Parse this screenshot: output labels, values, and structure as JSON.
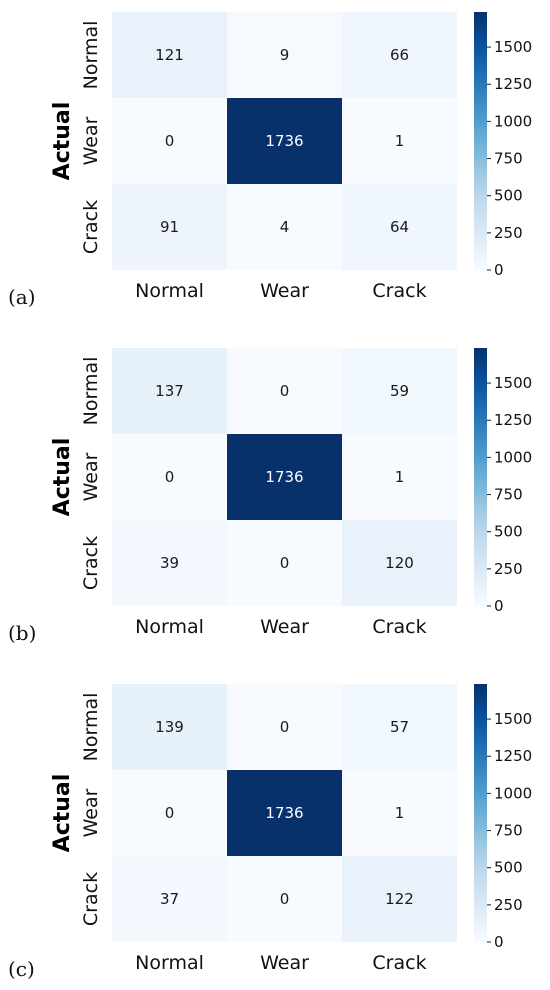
{
  "chart_data": [
    {
      "type": "heatmap",
      "panel_label": "(a)",
      "ylabel": "Actual",
      "xlabel": "",
      "x_categories": [
        "Normal",
        "Wear",
        "Crack"
      ],
      "y_categories": [
        "Normal",
        "Wear",
        "Crack"
      ],
      "values": [
        [
          121,
          9,
          66
        ],
        [
          0,
          1736,
          1
        ],
        [
          91,
          4,
          64
        ]
      ],
      "colorbar": {
        "min": 0,
        "max": 1736,
        "ticks": [
          0,
          250,
          500,
          750,
          1000,
          1250,
          1500
        ]
      },
      "colormap": "Blues"
    },
    {
      "type": "heatmap",
      "panel_label": "(b)",
      "ylabel": "Actual",
      "xlabel": "",
      "x_categories": [
        "Normal",
        "Wear",
        "Crack"
      ],
      "y_categories": [
        "Normal",
        "Wear",
        "Crack"
      ],
      "values": [
        [
          137,
          0,
          59
        ],
        [
          0,
          1736,
          1
        ],
        [
          39,
          0,
          120
        ]
      ],
      "colorbar": {
        "min": 0,
        "max": 1736,
        "ticks": [
          0,
          250,
          500,
          750,
          1000,
          1250,
          1500
        ]
      },
      "colormap": "Blues"
    },
    {
      "type": "heatmap",
      "panel_label": "(c)",
      "ylabel": "Actual",
      "xlabel": "",
      "x_categories": [
        "Normal",
        "Wear",
        "Crack"
      ],
      "y_categories": [
        "Normal",
        "Wear",
        "Crack"
      ],
      "values": [
        [
          139,
          0,
          57
        ],
        [
          0,
          1736,
          1
        ],
        [
          37,
          0,
          122
        ]
      ],
      "colorbar": {
        "min": 0,
        "max": 1736,
        "ticks": [
          0,
          250,
          500,
          750,
          1000,
          1250,
          1500
        ]
      },
      "colormap": "Blues"
    }
  ]
}
